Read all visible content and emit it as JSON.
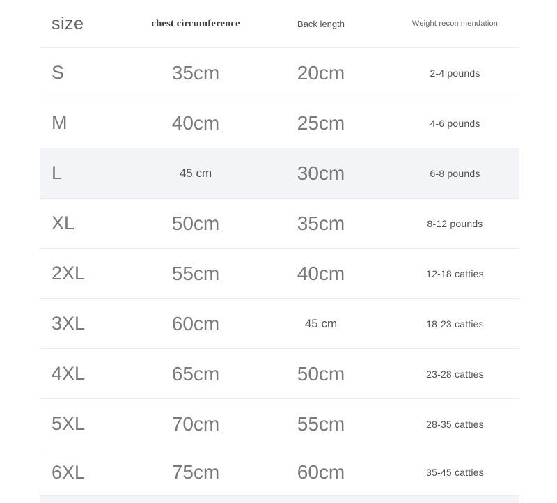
{
  "table": {
    "header": {
      "size_label": "size",
      "chest_label": "chest circumference",
      "back_label": "Back length",
      "weight_label": "Weight recommendation"
    },
    "rows": [
      {
        "size": "S",
        "chest": "35cm",
        "back": "20cm",
        "weight": "2-4 pounds"
      },
      {
        "size": "M",
        "chest": "40cm",
        "back": "25cm",
        "weight": "4-6 pounds"
      },
      {
        "size": "L",
        "chest": "45 cm",
        "back": "30cm",
        "weight": "6-8 pounds",
        "highlighted": true
      },
      {
        "size": "XL",
        "chest": "50cm",
        "back": "35cm",
        "weight": "8-12 pounds"
      },
      {
        "size": "2XL",
        "chest": "55cm",
        "back": "40cm",
        "weight": "12-18 catties"
      },
      {
        "size": "3XL",
        "chest": "60cm",
        "back": "45 cm",
        "weight": "18-23 catties"
      },
      {
        "size": "4XL",
        "chest": "65cm",
        "back": "50cm",
        "weight": "23-28 catties"
      },
      {
        "size": "5XL",
        "chest": "70cm",
        "back": "55cm",
        "weight": "28-35 catties"
      },
      {
        "size": "6XL",
        "chest": "75cm",
        "back": "60cm",
        "weight": "35-45 catties"
      }
    ],
    "colors": {
      "highlight_bg": "#f3f4f8",
      "divider": "#ececf2",
      "value_text": "#78787d",
      "small_text": "#515156",
      "serif_header_text": "#3f3f44"
    }
  }
}
